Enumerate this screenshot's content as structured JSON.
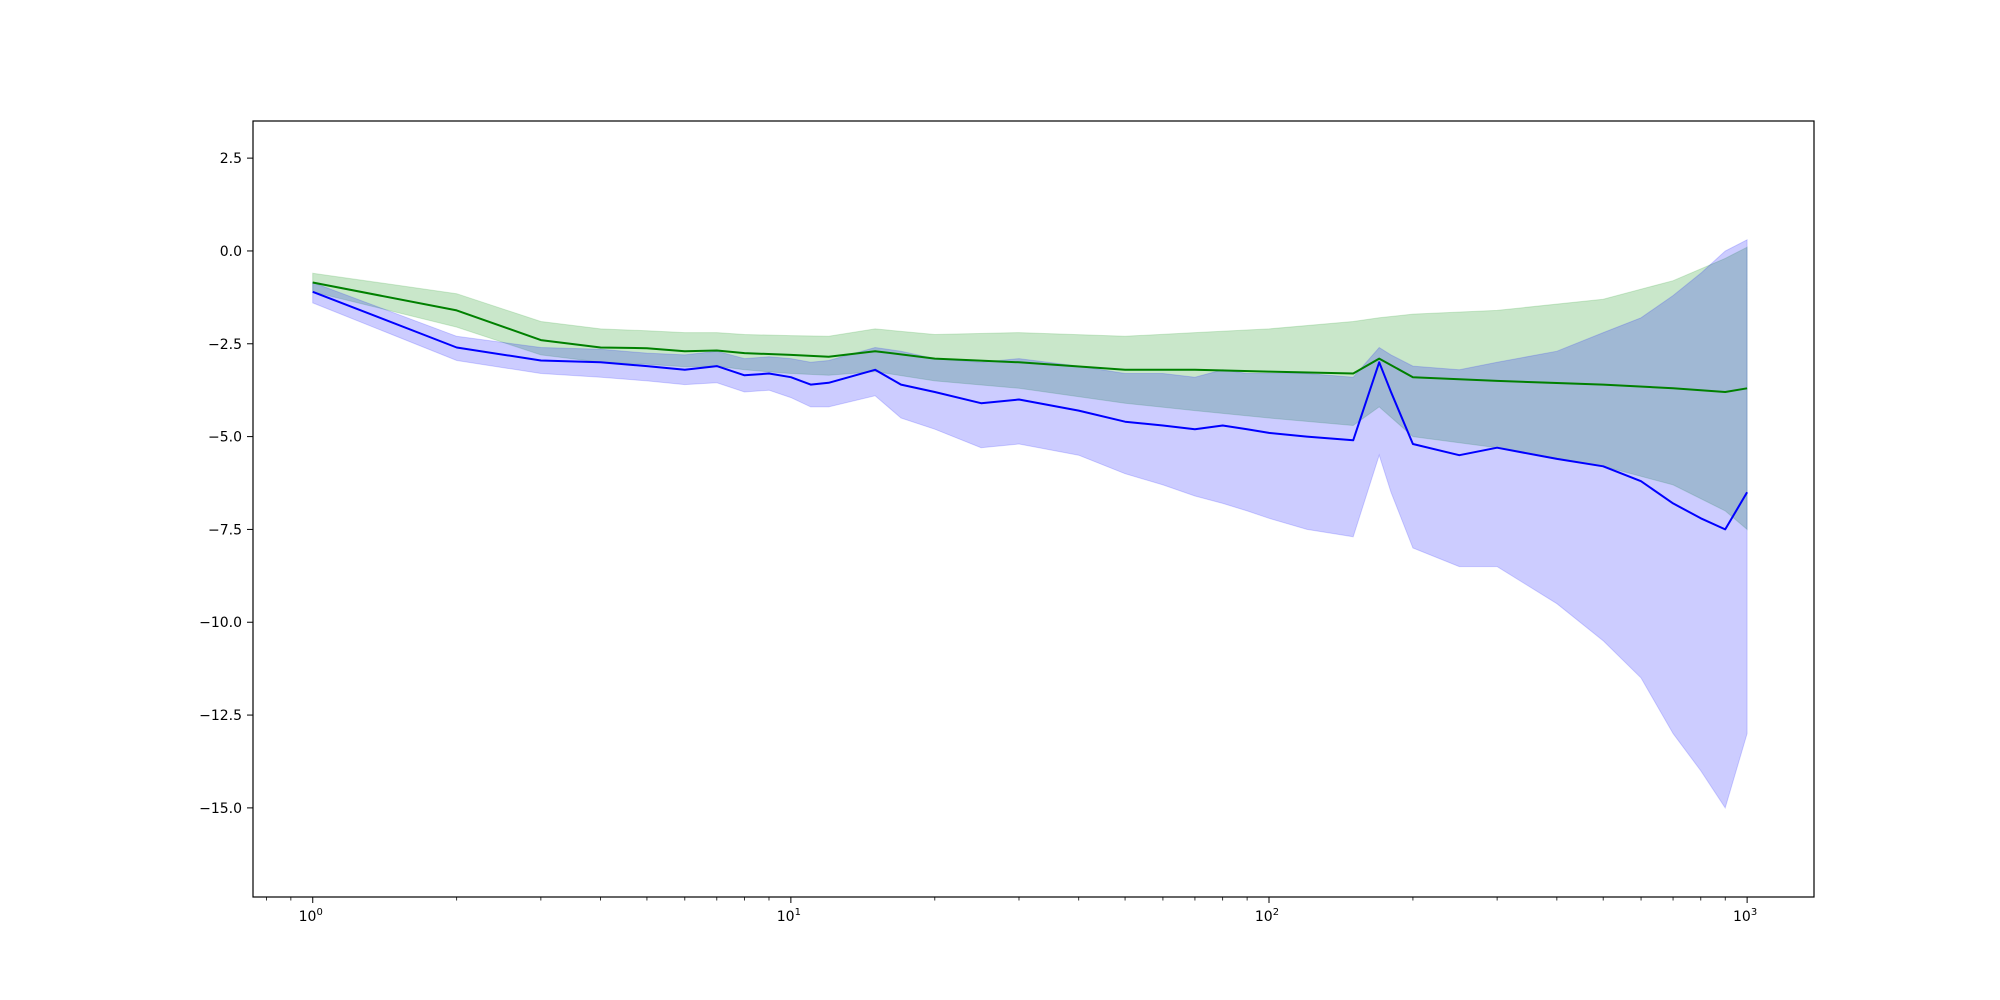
{
  "chart_data": {
    "type": "line",
    "title": "",
    "xlabel": "",
    "ylabel": "",
    "x_scale": "log",
    "xlim": [
      0.75,
      1380
    ],
    "ylim": [
      -17.4,
      3.5
    ],
    "grid": false,
    "legend": "none",
    "x_ticks": [
      {
        "value": 1,
        "base": "10",
        "exp": "0"
      },
      {
        "value": 10,
        "base": "10",
        "exp": "1"
      },
      {
        "value": 100,
        "base": "10",
        "exp": "2"
      },
      {
        "value": 1000,
        "base": "10",
        "exp": "3"
      }
    ],
    "y_ticks": [
      {
        "value": 2.5,
        "label": "2.5"
      },
      {
        "value": 0,
        "label": "0.0"
      },
      {
        "value": -2.5,
        "label": "−2.5"
      },
      {
        "value": -5,
        "label": "−5.0"
      },
      {
        "value": -7.5,
        "label": "−7.5"
      },
      {
        "value": -10,
        "label": "−10.0"
      },
      {
        "value": -12.5,
        "label": "−12.5"
      },
      {
        "value": -15,
        "label": "−15.0"
      }
    ],
    "series": [
      {
        "color": "#008000",
        "band_color": "#4caf50",
        "band_opacity": 0.3,
        "x": [
          1,
          2,
          3,
          4,
          5,
          6,
          7,
          8,
          10,
          12,
          15,
          20,
          30,
          50,
          70,
          100,
          150,
          170,
          200,
          300,
          500,
          700,
          900,
          1000
        ],
        "mean": [
          -0.85,
          -1.6,
          -2.4,
          -2.6,
          -2.62,
          -2.7,
          -2.68,
          -2.75,
          -2.8,
          -2.85,
          -2.7,
          -2.9,
          -3.0,
          -3.2,
          -3.2,
          -3.25,
          -3.3,
          -2.9,
          -3.4,
          -3.5,
          -3.6,
          -3.7,
          -3.8,
          -3.7
        ],
        "upper": [
          -0.6,
          -1.15,
          -1.9,
          -2.1,
          -2.15,
          -2.2,
          -2.2,
          -2.25,
          -2.28,
          -2.3,
          -2.1,
          -2.25,
          -2.2,
          -2.3,
          -2.2,
          -2.1,
          -1.9,
          -1.8,
          -1.7,
          -1.6,
          -1.3,
          -0.8,
          -0.2,
          0.1
        ],
        "lower": [
          -1.1,
          -2.05,
          -2.8,
          -3.0,
          -3.05,
          -3.12,
          -3.1,
          -3.2,
          -3.3,
          -3.35,
          -3.25,
          -3.5,
          -3.7,
          -4.1,
          -4.3,
          -4.5,
          -4.7,
          -4.2,
          -5.0,
          -5.3,
          -5.8,
          -6.3,
          -7.0,
          -7.5
        ]
      },
      {
        "color": "#0000ff",
        "band_color": "#0000ff",
        "band_opacity": 0.2,
        "x": [
          1,
          2,
          3,
          4,
          5,
          6,
          7,
          8,
          9,
          10,
          11,
          12,
          15,
          17,
          20,
          25,
          30,
          40,
          50,
          60,
          70,
          80,
          90,
          100,
          120,
          150,
          170,
          180,
          200,
          250,
          300,
          400,
          500,
          600,
          700,
          800,
          900,
          1000
        ],
        "mean": [
          -1.1,
          -2.6,
          -2.95,
          -3.0,
          -3.1,
          -3.2,
          -3.1,
          -3.35,
          -3.3,
          -3.4,
          -3.6,
          -3.55,
          -3.2,
          -3.6,
          -3.8,
          -4.1,
          -4.0,
          -4.3,
          -4.6,
          -4.7,
          -4.8,
          -4.7,
          -4.8,
          -4.9,
          -5.0,
          -5.1,
          -3.0,
          -3.8,
          -5.2,
          -5.5,
          -5.3,
          -5.6,
          -5.8,
          -6.2,
          -6.8,
          -7.2,
          -7.5,
          -6.5
        ],
        "upper": [
          -0.85,
          -2.3,
          -2.6,
          -2.65,
          -2.75,
          -2.8,
          -2.7,
          -2.9,
          -2.85,
          -2.9,
          -3.0,
          -2.95,
          -2.6,
          -2.7,
          -2.9,
          -3.0,
          -2.9,
          -3.1,
          -3.3,
          -3.3,
          -3.4,
          -3.2,
          -3.3,
          -3.3,
          -3.3,
          -3.4,
          -2.6,
          -2.8,
          -3.1,
          -3.2,
          -3.0,
          -2.7,
          -2.2,
          -1.8,
          -1.2,
          -0.6,
          0.0,
          0.3
        ],
        "lower": [
          -1.4,
          -2.95,
          -3.3,
          -3.4,
          -3.5,
          -3.6,
          -3.55,
          -3.8,
          -3.75,
          -3.95,
          -4.2,
          -4.2,
          -3.9,
          -4.5,
          -4.8,
          -5.3,
          -5.2,
          -5.5,
          -6.0,
          -6.3,
          -6.6,
          -6.8,
          -7.0,
          -7.2,
          -7.5,
          -7.7,
          -5.5,
          -6.5,
          -8.0,
          -8.5,
          -8.5,
          -9.5,
          -10.5,
          -11.5,
          -13.0,
          -14.0,
          -15.0,
          -13.0
        ]
      }
    ]
  }
}
